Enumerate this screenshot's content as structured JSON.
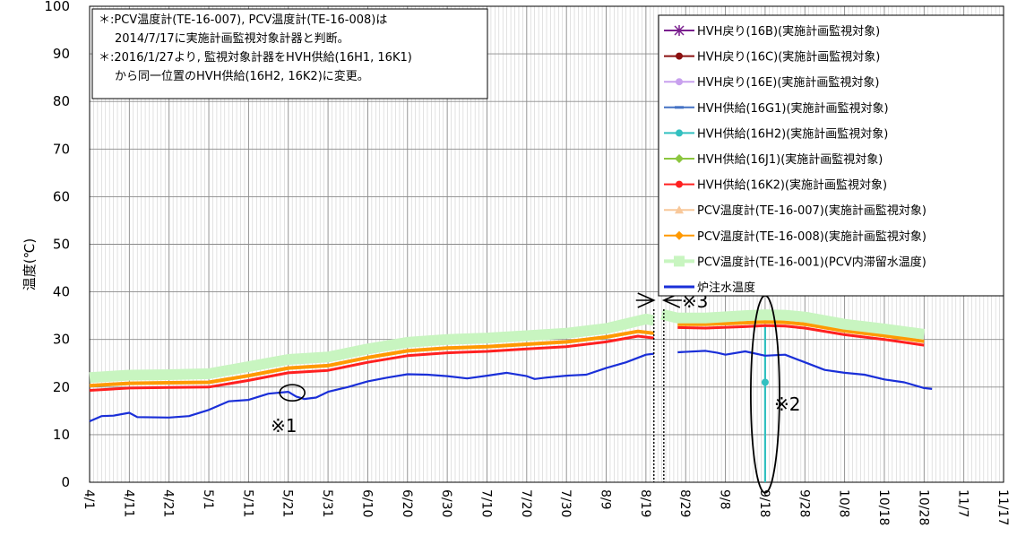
{
  "chart_data": {
    "type": "line",
    "ylabel": "温度(℃)",
    "ylim": [
      0,
      100
    ],
    "yticks": [
      "0",
      "10",
      "20",
      "30",
      "40",
      "50",
      "60",
      "70",
      "80",
      "90",
      "100"
    ],
    "xticks": [
      "4/1",
      "4/11",
      "4/21",
      "5/1",
      "5/11",
      "5/21",
      "5/31",
      "6/10",
      "6/20",
      "6/30",
      "7/10",
      "7/20",
      "7/30",
      "8/9",
      "8/19",
      "8/29",
      "9/8",
      "9/18",
      "9/28",
      "10/8",
      "10/18",
      "10/28",
      "11/7",
      "11/17"
    ],
    "x_range_days": [
      0,
      230
    ],
    "grid": true,
    "legend_position": "right",
    "notes": [
      "＊:PCV温度計(TE-16-007), PCV温度計(TE-16-008)は",
      "2014/7/17に実施計画監視対象計器と判断。",
      "＊:2016/1/27より, 監視対象計器をHVH供給(16H1, 16K1)",
      "から同一位置のHVH供給(16H2, 16K2)に変更。"
    ],
    "annotations": [
      "※1",
      "※2",
      "※3"
    ],
    "series": [
      {
        "name": "HVH戻り(16B)(実施計画監視対象)",
        "color": "#7a1f8e",
        "marker": "star",
        "points": []
      },
      {
        "name": "HVH戻り(16C)(実施計画監視対象)",
        "color": "#8b1010",
        "marker": "circle",
        "points": []
      },
      {
        "name": "HVH戻り(16E)(実施計画監視対象)",
        "color": "#c8a0ee",
        "marker": "circle",
        "points": []
      },
      {
        "name": "HVH供給(16G1)(実施計画監視対象)",
        "color": "#4472c4",
        "marker": "dash",
        "points": []
      },
      {
        "name": "HVH供給(16H2)(実施計画監視対象)",
        "color": "#33c0c0",
        "marker": "circle",
        "segments": [
          [
            [
              170,
              0
            ],
            [
              170,
              21
            ],
            [
              170,
              33
            ]
          ]
        ]
      },
      {
        "name": "HVH供給(16J1)(実施計画監視対象)",
        "color": "#8cc63f",
        "marker": "diamond",
        "points": []
      },
      {
        "name": "HVH供給(16K2)(実施計画監視対象)",
        "color": "#ff2020",
        "marker": "circle",
        "segments": [
          [
            [
              0,
              19.3
            ],
            [
              10,
              19.8
            ],
            [
              20,
              19.9
            ],
            [
              30,
              20.0
            ],
            [
              40,
              21.4
            ],
            [
              50,
              23.0
            ],
            [
              60,
              23.5
            ],
            [
              70,
              25.2
            ],
            [
              80,
              26.6
            ],
            [
              90,
              27.2
            ],
            [
              100,
              27.5
            ],
            [
              110,
              28.0
            ],
            [
              120,
              28.5
            ],
            [
              130,
              29.5
            ],
            [
              138,
              30.7
            ],
            [
              142,
              30.3
            ]
          ],
          [
            [
              148,
              32.5
            ],
            [
              155,
              32.4
            ],
            [
              165,
              32.7
            ],
            [
              170,
              32.9
            ],
            [
              175,
              32.8
            ],
            [
              180,
              32.4
            ],
            [
              190,
              31.0
            ],
            [
              200,
              30.0
            ],
            [
              210,
              28.8
            ]
          ]
        ]
      },
      {
        "name": "PCV温度計(TE-16-007)(実施計画監視対象)",
        "color": "#f8c89a",
        "marker": "triangle",
        "points": []
      },
      {
        "name": "PCV温度計(TE-16-008)(実施計画監視対象)",
        "color": "#ff9900",
        "marker": "diamond",
        "segments": [
          [
            [
              0,
              20.3
            ],
            [
              10,
              20.8
            ],
            [
              20,
              20.9
            ],
            [
              30,
              21.0
            ],
            [
              40,
              22.4
            ],
            [
              50,
              24.0
            ],
            [
              60,
              24.5
            ],
            [
              70,
              26.2
            ],
            [
              80,
              27.6
            ],
            [
              90,
              28.2
            ],
            [
              100,
              28.5
            ],
            [
              110,
              29.0
            ],
            [
              120,
              29.5
            ],
            [
              130,
              30.5
            ],
            [
              138,
              31.7
            ],
            [
              142,
              31.3
            ]
          ],
          [
            [
              148,
              33.2
            ],
            [
              155,
              33.2
            ],
            [
              165,
              33.5
            ],
            [
              170,
              33.7
            ],
            [
              175,
              33.6
            ],
            [
              180,
              33.2
            ],
            [
              190,
              31.8
            ],
            [
              200,
              30.8
            ],
            [
              210,
              29.6
            ]
          ]
        ]
      },
      {
        "name": "PCV温度計(TE-16-001)(PCV内滞留水温度)",
        "color": "#c8f5c0",
        "marker": "square",
        "segments": [
          [
            [
              0,
              22.0
            ],
            [
              10,
              22.5
            ],
            [
              20,
              22.6
            ],
            [
              30,
              22.8
            ],
            [
              40,
              24.3
            ],
            [
              50,
              25.8
            ],
            [
              60,
              26.3
            ],
            [
              70,
              28.0
            ],
            [
              80,
              29.4
            ],
            [
              90,
              30.0
            ],
            [
              100,
              30.3
            ],
            [
              110,
              30.8
            ],
            [
              120,
              31.3
            ],
            [
              130,
              32.3
            ],
            [
              140,
              34.3
            ],
            [
              142,
              34.0
            ]
          ],
          [
            [
              144,
              35.3
            ],
            [
              148,
              34.5
            ],
            [
              155,
              34.5
            ],
            [
              165,
              35.0
            ],
            [
              170,
              35.2
            ],
            [
              175,
              35.1
            ],
            [
              180,
              34.7
            ],
            [
              190,
              33.2
            ],
            [
              200,
              32.2
            ],
            [
              210,
              31.1
            ]
          ]
        ]
      },
      {
        "name": "炉注水温度",
        "color": "#1a2fd8",
        "marker": "none",
        "segments": [
          [
            [
              0,
              12.8
            ],
            [
              3,
              13.9
            ],
            [
              6,
              14.0
            ],
            [
              10,
              14.6
            ],
            [
              12,
              13.7
            ],
            [
              20,
              13.6
            ],
            [
              25,
              13.9
            ],
            [
              30,
              15.2
            ],
            [
              35,
              17.0
            ],
            [
              40,
              17.3
            ],
            [
              45,
              18.6
            ],
            [
              50,
              19.0
            ],
            [
              52,
              18.0
            ],
            [
              54,
              17.5
            ],
            [
              57,
              17.8
            ],
            [
              60,
              19.0
            ],
            [
              65,
              20.0
            ],
            [
              70,
              21.2
            ],
            [
              75,
              22.0
            ],
            [
              80,
              22.7
            ],
            [
              85,
              22.6
            ],
            [
              90,
              22.3
            ],
            [
              95,
              21.8
            ],
            [
              100,
              22.4
            ],
            [
              105,
              23.0
            ],
            [
              110,
              22.3
            ],
            [
              112,
              21.7
            ],
            [
              115,
              22.0
            ],
            [
              120,
              22.4
            ],
            [
              125,
              22.6
            ],
            [
              130,
              24.0
            ],
            [
              135,
              25.2
            ],
            [
              140,
              26.8
            ],
            [
              142,
              27.0
            ]
          ],
          [
            [
              148,
              27.3
            ],
            [
              155,
              27.6
            ],
            [
              158,
              27.2
            ],
            [
              160,
              26.8
            ],
            [
              165,
              27.5
            ],
            [
              170,
              26.6
            ],
            [
              175,
              26.8
            ],
            [
              180,
              25.2
            ],
            [
              185,
              23.6
            ],
            [
              190,
              23.0
            ],
            [
              195,
              22.6
            ],
            [
              200,
              21.6
            ],
            [
              205,
              21.0
            ],
            [
              210,
              19.8
            ],
            [
              212,
              19.6
            ]
          ]
        ]
      }
    ]
  }
}
